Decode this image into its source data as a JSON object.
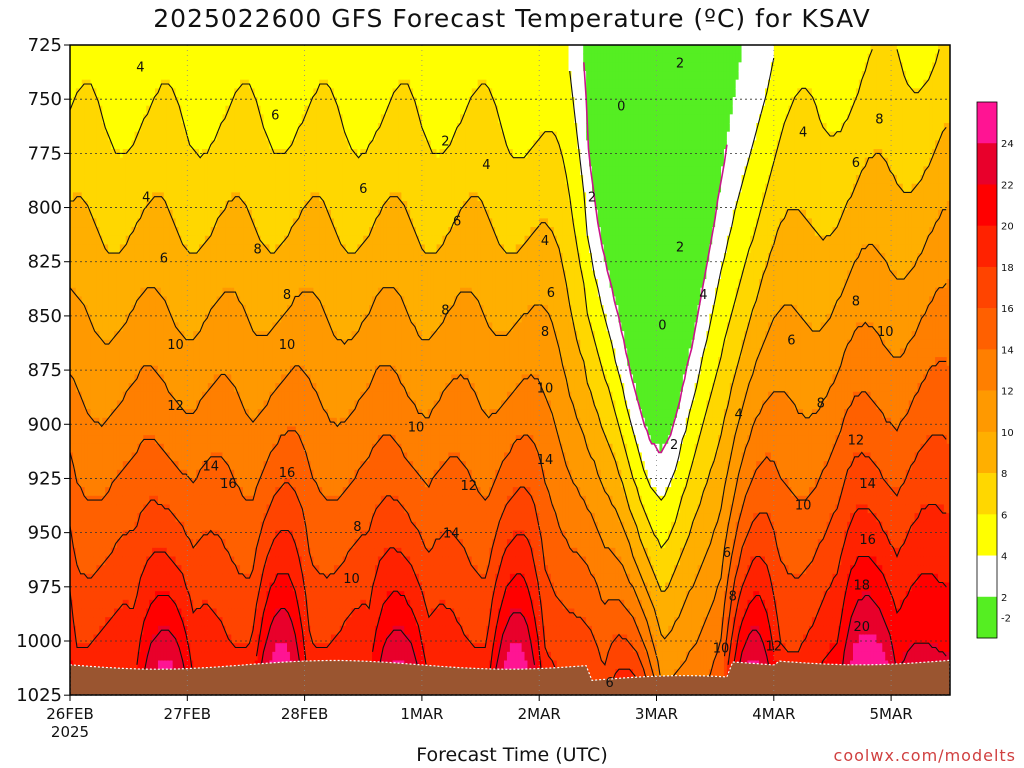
{
  "title": "2025022600 GFS Forecast Temperature (ºC) for KSAV",
  "xlabel": "Forecast Time (UTC)",
  "credit": "coolwx.com/modelts",
  "chart_data": {
    "type": "heatmap",
    "title": "2025022600 GFS Forecast Temperature (ºC) for KSAV",
    "xlabel": "Forecast Time (UTC)",
    "ylabel": "",
    "x_ticks": [
      "26FEB",
      "27FEB",
      "28FEB",
      "1MAR",
      "2MAR",
      "3MAR",
      "4MAR",
      "5MAR"
    ],
    "x_tick_year": "2025",
    "y_ticks": [
      725,
      750,
      775,
      800,
      825,
      850,
      875,
      900,
      925,
      950,
      975,
      1000,
      1025
    ],
    "ylim": [
      1025,
      725
    ],
    "xlim_days": [
      0,
      7.5
    ],
    "colorbar_ticks": [
      -2,
      2,
      4,
      6,
      8,
      10,
      12,
      14,
      16,
      18,
      20,
      22,
      24
    ],
    "colorbar_colors": [
      "#55ee22",
      "#ffffff",
      "#ffff00",
      "#ffd700",
      "#ffaf00",
      "#ff9900",
      "#ff7f00",
      "#ff6000",
      "#ff4400",
      "#ff2200",
      "#ff0000",
      "#e8002b",
      "#ff1493"
    ],
    "terrain_color": "#9a5530",
    "freezing_line_color": "#c8168a",
    "contour_labels": [
      {
        "t": 0.6,
        "p": 735,
        "v": "4"
      },
      {
        "t": 0.65,
        "p": 795,
        "v": "4"
      },
      {
        "t": 0.8,
        "p": 823,
        "v": "6"
      },
      {
        "t": 1.75,
        "p": 757,
        "v": "6"
      },
      {
        "t": 1.6,
        "p": 819,
        "v": "8"
      },
      {
        "t": 1.85,
        "p": 840,
        "v": "8"
      },
      {
        "t": 0.9,
        "p": 863,
        "v": "10"
      },
      {
        "t": 1.85,
        "p": 863,
        "v": "10"
      },
      {
        "t": 0.9,
        "p": 891,
        "v": "12"
      },
      {
        "t": 1.2,
        "p": 919,
        "v": "14"
      },
      {
        "t": 1.35,
        "p": 927,
        "v": "16"
      },
      {
        "t": 1.85,
        "p": 922,
        "v": "16"
      },
      {
        "t": 2.5,
        "p": 791,
        "v": "6"
      },
      {
        "t": 3.2,
        "p": 769,
        "v": "2"
      },
      {
        "t": 3.55,
        "p": 780,
        "v": "4"
      },
      {
        "t": 3.3,
        "p": 806,
        "v": "6"
      },
      {
        "t": 3.2,
        "p": 847,
        "v": "8"
      },
      {
        "t": 2.45,
        "p": 947,
        "v": "8"
      },
      {
        "t": 2.4,
        "p": 971,
        "v": "10"
      },
      {
        "t": 2.95,
        "p": 901,
        "v": "10"
      },
      {
        "t": 3.4,
        "p": 928,
        "v": "12"
      },
      {
        "t": 3.25,
        "p": 950,
        "v": "14"
      },
      {
        "t": 4.05,
        "p": 815,
        "v": "4"
      },
      {
        "t": 4.1,
        "p": 839,
        "v": "6"
      },
      {
        "t": 4.05,
        "p": 857,
        "v": "8"
      },
      {
        "t": 4.05,
        "p": 883,
        "v": "10"
      },
      {
        "t": 4.05,
        "p": 916,
        "v": "14"
      },
      {
        "t": 4.45,
        "p": 795,
        "v": "2"
      },
      {
        "t": 4.7,
        "p": 753,
        "v": "0"
      },
      {
        "t": 5.05,
        "p": 854,
        "v": "0"
      },
      {
        "t": 5.2,
        "p": 733,
        "v": "2"
      },
      {
        "t": 5.2,
        "p": 818,
        "v": "2"
      },
      {
        "t": 5.4,
        "p": 840,
        "v": "4"
      },
      {
        "t": 5.15,
        "p": 909,
        "v": "2"
      },
      {
        "t": 5.7,
        "p": 895,
        "v": "4"
      },
      {
        "t": 5.6,
        "p": 959,
        "v": "6"
      },
      {
        "t": 5.65,
        "p": 979,
        "v": "8"
      },
      {
        "t": 5.55,
        "p": 1003,
        "v": "10"
      },
      {
        "t": 4.6,
        "p": 1019,
        "v": "6"
      },
      {
        "t": 6.25,
        "p": 765,
        "v": "4"
      },
      {
        "t": 6.7,
        "p": 779,
        "v": "6"
      },
      {
        "t": 6.9,
        "p": 759,
        "v": "8"
      },
      {
        "t": 6.7,
        "p": 843,
        "v": "8"
      },
      {
        "t": 6.15,
        "p": 861,
        "v": "6"
      },
      {
        "t": 6.4,
        "p": 890,
        "v": "8"
      },
      {
        "t": 6.95,
        "p": 857,
        "v": "10"
      },
      {
        "t": 6.7,
        "p": 907,
        "v": "12"
      },
      {
        "t": 6.25,
        "p": 937,
        "v": "10"
      },
      {
        "t": 6.8,
        "p": 927,
        "v": "14"
      },
      {
        "t": 6.8,
        "p": 953,
        "v": "16"
      },
      {
        "t": 6.75,
        "p": 974,
        "v": "18"
      },
      {
        "t": 6.75,
        "p": 993,
        "v": "20"
      },
      {
        "t": 6.0,
        "p": 1002,
        "v": "12"
      }
    ]
  }
}
